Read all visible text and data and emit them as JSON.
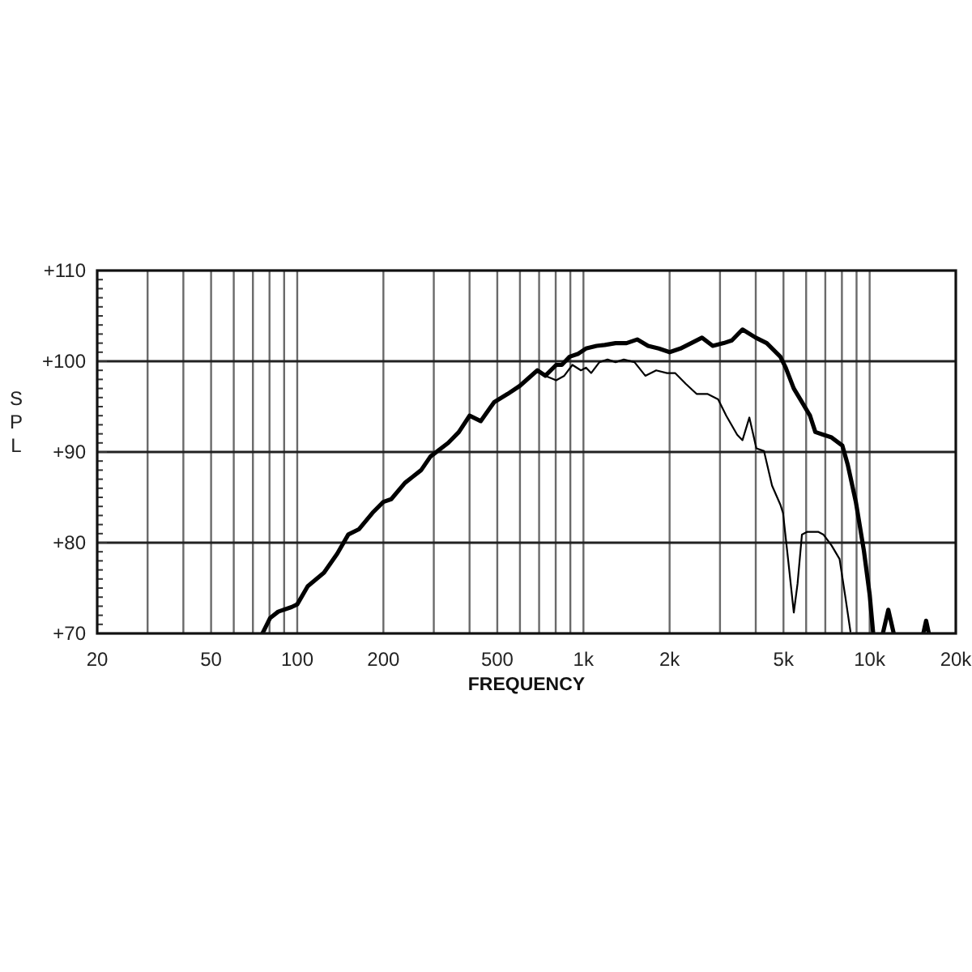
{
  "chart_data": {
    "type": "line",
    "xlabel": "FREQUENCY",
    "ylabel": "SPL",
    "log": "x",
    "grid": true,
    "xlim": [
      20,
      20000
    ],
    "ylim": [
      70,
      110
    ],
    "xticks": [
      20,
      {
        "value": 30,
        "label": null
      },
      {
        "value": 40,
        "label": null
      },
      50,
      {
        "value": 60,
        "label": null
      },
      {
        "value": 70,
        "label": null
      },
      {
        "value": 80,
        "label": null
      },
      {
        "value": 90,
        "label": null
      },
      100,
      200,
      {
        "value": 300,
        "label": null
      },
      {
        "value": 400,
        "label": null
      },
      500,
      {
        "value": 600,
        "label": null
      },
      {
        "value": 700,
        "label": null
      },
      {
        "value": 800,
        "label": null
      },
      {
        "value": 900,
        "label": null
      },
      {
        "value": 1000,
        "label": "1k"
      },
      {
        "value": 2000,
        "label": "2k"
      },
      {
        "value": 3000,
        "label": null
      },
      {
        "value": 4000,
        "label": null
      },
      {
        "value": 5000,
        "label": "5k"
      },
      {
        "value": 6000,
        "label": null
      },
      {
        "value": 7000,
        "label": null
      },
      {
        "value": 8000,
        "label": null
      },
      {
        "value": 9000,
        "label": null
      },
      {
        "value": 10000,
        "label": "10k"
      },
      {
        "value": 20000,
        "label": "20k"
      }
    ],
    "yticks": [
      {
        "value": 70,
        "label": "+70"
      },
      {
        "value": 71,
        "label": null
      },
      {
        "value": 72,
        "label": null
      },
      {
        "value": 73,
        "label": null
      },
      {
        "value": 74,
        "label": null
      },
      {
        "value": 75,
        "label": null
      },
      {
        "value": 76,
        "label": null
      },
      {
        "value": 77,
        "label": null
      },
      {
        "value": 78,
        "label": null
      },
      {
        "value": 79,
        "label": null
      },
      {
        "value": 80,
        "label": "+80"
      },
      {
        "value": 81,
        "label": null
      },
      {
        "value": 82,
        "label": null
      },
      {
        "value": 83,
        "label": null
      },
      {
        "value": 84,
        "label": null
      },
      {
        "value": 85,
        "label": null
      },
      {
        "value": 86,
        "label": null
      },
      {
        "value": 87,
        "label": null
      },
      {
        "value": 88,
        "label": null
      },
      {
        "value": 89,
        "label": null
      },
      {
        "value": 90,
        "label": "+90"
      },
      {
        "value": 91,
        "label": null
      },
      {
        "value": 92,
        "label": null
      },
      {
        "value": 93,
        "label": null
      },
      {
        "value": 94,
        "label": null
      },
      {
        "value": 95,
        "label": null
      },
      {
        "value": 96,
        "label": null
      },
      {
        "value": 97,
        "label": null
      },
      {
        "value": 98,
        "label": null
      },
      {
        "value": 99,
        "label": null
      },
      {
        "value": 100,
        "label": "+100"
      },
      {
        "value": 101,
        "label": null
      },
      {
        "value": 102,
        "label": null
      },
      {
        "value": 103,
        "label": null
      },
      {
        "value": 104,
        "label": null
      },
      {
        "value": 105,
        "label": null
      },
      {
        "value": 106,
        "label": null
      },
      {
        "value": 107,
        "label": null
      },
      {
        "value": 108,
        "label": null
      },
      {
        "value": 109,
        "label": null
      },
      {
        "value": 110,
        "label": "+110"
      }
    ],
    "series": [
      {
        "color": "#000000",
        "x": [
          75.6,
          80.4,
          85.8,
          95.5,
          100,
          108.8,
          124,
          138,
          150.8,
          164.5,
          183.3,
          200,
          213,
          237.9,
          271,
          292,
          337,
          367,
          400,
          437.5,
          487.6,
          543.6,
          600,
          690,
          736,
          803.5,
          840,
          895,
          955,
          1020,
          1112,
          1187,
          1295,
          1414,
          1541,
          1682,
          1834,
          2000,
          2181,
          2380,
          2595,
          2830,
          3090,
          3300,
          3595,
          4000,
          4370,
          4875,
          5090,
          5432,
          5800,
          6190,
          6460,
          6894,
          7360,
          8030,
          8385,
          8950,
          9550,
          10000,
          10290,
          10700,
          11120,
          11620,
          12140,
          13500,
          15400,
          15750,
          16100
        ],
        "values": [
          70,
          71.7,
          72.4,
          72.9,
          73.2,
          75.2,
          76.7,
          78.8,
          80.9,
          81.5,
          83.3,
          84.5,
          84.8,
          86.6,
          88.0,
          89.5,
          91.0,
          92.2,
          94.0,
          93.4,
          95.5,
          96.4,
          97.3,
          99.0,
          98.4,
          99.6,
          99.6,
          100.5,
          100.8,
          101.4,
          101.7,
          101.8,
          102.0,
          102.0,
          102.4,
          101.7,
          101.4,
          101.0,
          101.4,
          102.0,
          102.6,
          101.7,
          102.0,
          102.3,
          103.5,
          102.6,
          102.0,
          100.5,
          99.3,
          97.0,
          95.5,
          94.0,
          92.2,
          91.9,
          91.6,
          90.7,
          88.6,
          84.5,
          79.1,
          74.3,
          70.0,
          null,
          70,
          72.6,
          70,
          null,
          70,
          71.4,
          70
        ]
      },
      {
        "color": "#000000",
        "x": [
          690,
          736,
          803,
          857,
          915,
          980,
          1020,
          1064,
          1137,
          1214,
          1295,
          1384,
          1508,
          1645,
          1795,
          1960,
          2090,
          2280,
          2485,
          2710,
          2955,
          3155,
          3445,
          3595,
          3800,
          4020,
          4275,
          4560,
          4875,
          4980,
          5200,
          5432,
          5600,
          5800,
          6055,
          6606,
          6894,
          7360,
          7850,
          8200,
          8570
        ],
        "values": [
          99.0,
          98.4,
          97.9,
          98.4,
          99.6,
          99.0,
          99.3,
          98.7,
          99.9,
          100.2,
          99.9,
          100.2,
          99.9,
          98.4,
          99.0,
          98.7,
          98.7,
          97.5,
          96.4,
          96.4,
          95.8,
          94.0,
          91.9,
          91.3,
          93.8,
          90.4,
          90.1,
          86.3,
          84.2,
          83.3,
          77.9,
          72.3,
          75.5,
          80.9,
          81.2,
          81.2,
          80.9,
          79.7,
          78.2,
          74.3,
          70.2
        ]
      }
    ]
  }
}
